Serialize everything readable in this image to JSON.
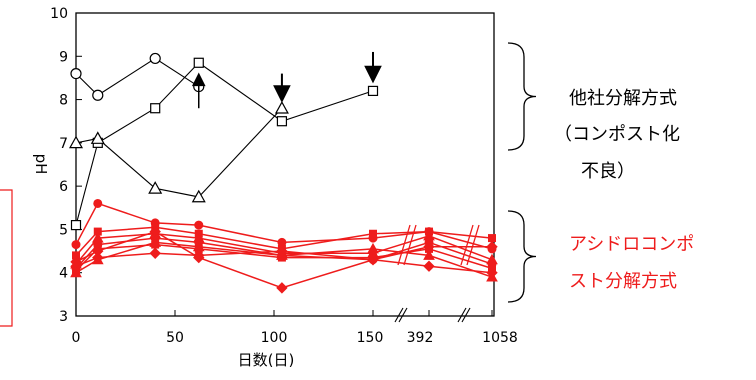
{
  "chart_data": {
    "type": "line",
    "title": "",
    "xlabel": "日数(日)",
    "ylabel": "pH",
    "ylim": [
      3,
      10
    ],
    "y_ticks": [
      "3",
      "4",
      "5",
      "6",
      "7",
      "8",
      "9",
      "10"
    ],
    "x_ticks": [
      "0",
      "50",
      "100",
      "150",
      "392",
      "1058"
    ],
    "x_axis_note": "broken axis: linear 0-150 days, then 392 and 1058 days",
    "grid": false,
    "colors": {
      "other": "#000000",
      "acid": "#ee1c1c"
    },
    "groups": [
      {
        "label_lines": [
          "他社分解方式",
          "（コンポスト化",
          "不良）"
        ],
        "color": "#000000"
      },
      {
        "label_lines": [
          "アシドロコンポ",
          "スト分解方式"
        ],
        "color": "#ee1c1c"
      }
    ],
    "series": [
      {
        "group": "other",
        "marker": "circle",
        "points": [
          [
            0,
            8.6
          ],
          [
            11,
            8.1
          ],
          [
            40,
            8.95
          ],
          [
            62,
            8.3
          ]
        ]
      },
      {
        "group": "other",
        "marker": "square",
        "points": [
          [
            0,
            5.1
          ],
          [
            11,
            7.0
          ],
          [
            40,
            7.8
          ],
          [
            62,
            8.85
          ],
          [
            104,
            7.5
          ],
          [
            150,
            8.2
          ]
        ]
      },
      {
        "group": "other",
        "marker": "triangle",
        "points": [
          [
            0,
            7.0
          ],
          [
            11,
            7.1
          ],
          [
            40,
            5.95
          ],
          [
            62,
            5.75
          ],
          [
            104,
            7.8
          ]
        ]
      },
      {
        "group": "acid",
        "marker": "circle",
        "points": [
          [
            0,
            4.65
          ],
          [
            11,
            5.6
          ],
          [
            40,
            5.15
          ],
          [
            62,
            5.1
          ],
          [
            104,
            4.7
          ],
          [
            150,
            4.8
          ],
          [
            392,
            4.95
          ],
          [
            1058,
            4.55
          ]
        ]
      },
      {
        "group": "acid",
        "marker": "square",
        "points": [
          [
            0,
            4.4
          ],
          [
            11,
            4.95
          ],
          [
            40,
            5.05
          ],
          [
            62,
            4.9
          ],
          [
            104,
            4.55
          ],
          [
            150,
            4.9
          ],
          [
            392,
            4.95
          ],
          [
            1058,
            4.8
          ]
        ]
      },
      {
        "group": "acid",
        "marker": "triangle",
        "points": [
          [
            0,
            4.2
          ],
          [
            11,
            4.8
          ],
          [
            40,
            4.9
          ],
          [
            62,
            4.8
          ],
          [
            104,
            4.45
          ],
          [
            150,
            4.45
          ],
          [
            392,
            4.85
          ],
          [
            1058,
            4.3
          ]
        ]
      },
      {
        "group": "acid",
        "marker": "circle",
        "points": [
          [
            0,
            4.1
          ],
          [
            11,
            4.65
          ],
          [
            40,
            4.8
          ],
          [
            62,
            4.7
          ],
          [
            104,
            4.4
          ],
          [
            150,
            4.3
          ],
          [
            392,
            4.7
          ],
          [
            1058,
            4.2
          ]
        ]
      },
      {
        "group": "acid",
        "marker": "square",
        "points": [
          [
            0,
            4.05
          ],
          [
            11,
            4.55
          ],
          [
            40,
            4.65
          ],
          [
            62,
            4.55
          ],
          [
            104,
            4.35
          ],
          [
            150,
            4.35
          ],
          [
            392,
            4.55
          ],
          [
            1058,
            4.1
          ]
        ]
      },
      {
        "group": "acid",
        "marker": "triangle",
        "points": [
          [
            0,
            4.0
          ],
          [
            11,
            4.3
          ],
          [
            40,
            4.7
          ],
          [
            62,
            4.6
          ],
          [
            104,
            4.4
          ],
          [
            150,
            4.55
          ],
          [
            392,
            4.4
          ],
          [
            1058,
            3.9
          ]
        ]
      },
      {
        "group": "acid",
        "marker": "diamond",
        "points": [
          [
            0,
            4.15
          ],
          [
            11,
            4.35
          ],
          [
            40,
            4.45
          ],
          [
            62,
            4.4
          ],
          [
            104,
            4.5
          ],
          [
            150,
            4.3
          ],
          [
            392,
            4.15
          ],
          [
            1058,
            4.0
          ]
        ]
      },
      {
        "group": "acid",
        "marker": "diamond",
        "points": [
          [
            0,
            4.25
          ],
          [
            11,
            4.5
          ],
          [
            40,
            4.95
          ],
          [
            62,
            4.35
          ],
          [
            104,
            3.65
          ],
          [
            150,
            4.3
          ],
          [
            392,
            4.6
          ],
          [
            1058,
            4.6
          ]
        ]
      }
    ],
    "arrows": [
      {
        "x": 62,
        "y_from": 7.8,
        "y_to": 8.6,
        "direction": "up",
        "style": "thin"
      },
      {
        "x": 104,
        "y_from": 8.6,
        "y_to": 7.95,
        "direction": "down",
        "style": "bold"
      },
      {
        "x": 150,
        "y_from": 9.1,
        "y_to": 8.4,
        "direction": "down",
        "style": "bold"
      }
    ]
  }
}
